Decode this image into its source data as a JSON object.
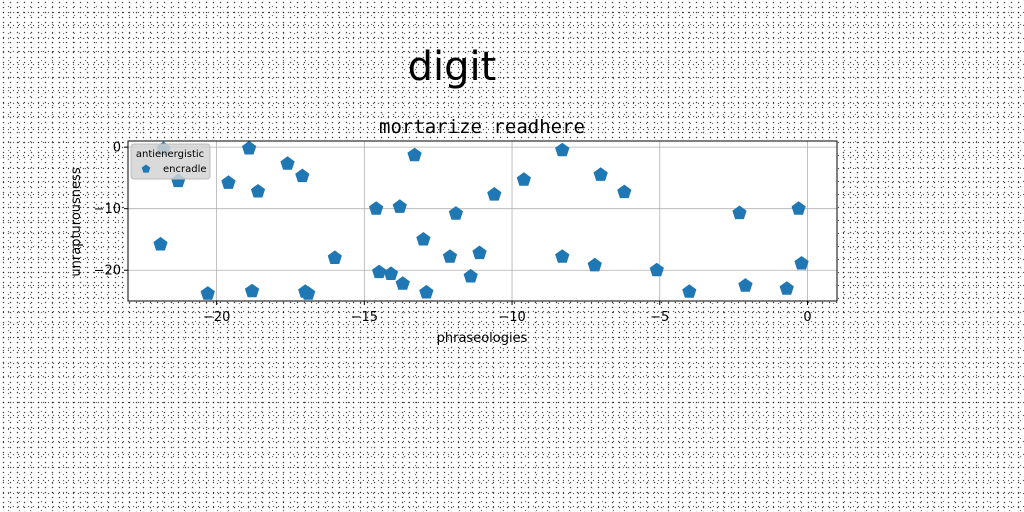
{
  "figure": {
    "suptitle": "digit"
  },
  "chart_data": {
    "type": "scatter",
    "title": "mortarize readhere",
    "xlabel": "phraseologies",
    "ylabel": "unrapturousness",
    "xlim": [
      -23,
      1
    ],
    "ylim": [
      -25,
      1
    ],
    "xticks": [
      -20,
      -15,
      -10,
      -5,
      0
    ],
    "xtick_labels": [
      "−20",
      "−15",
      "−10",
      "−5",
      "0"
    ],
    "yticks": [
      0,
      -10,
      -20
    ],
    "ytick_labels": [
      "0",
      "−10",
      "−20"
    ],
    "grid": true,
    "legend": {
      "title": "antienergistic",
      "position": "top-left"
    },
    "series": [
      {
        "name": "encradle",
        "marker": "pentagon",
        "color": "#1f77b4",
        "points": [
          [
            -21.8,
            -0.3
          ],
          [
            -21.3,
            -5.5
          ],
          [
            -21.9,
            -15.8
          ],
          [
            -20.3,
            -23.8
          ],
          [
            -19.6,
            -5.8
          ],
          [
            -18.8,
            -23.4
          ],
          [
            -18.9,
            -0.2
          ],
          [
            -18.6,
            -7.2
          ],
          [
            -17.6,
            -2.7
          ],
          [
            -17.1,
            -4.7
          ],
          [
            -17.0,
            -23.5
          ],
          [
            -16.9,
            -23.8
          ],
          [
            -16.0,
            -18.0
          ],
          [
            -14.6,
            -10.0
          ],
          [
            -14.5,
            -20.3
          ],
          [
            -14.1,
            -20.6
          ],
          [
            -13.8,
            -9.7
          ],
          [
            -13.7,
            -22.2
          ],
          [
            -13.3,
            -1.3
          ],
          [
            -13.0,
            -15.0
          ],
          [
            -12.9,
            -23.6
          ],
          [
            -12.1,
            -17.8
          ],
          [
            -11.9,
            -10.8
          ],
          [
            -11.4,
            -21.0
          ],
          [
            -11.1,
            -17.2
          ],
          [
            -10.6,
            -7.7
          ],
          [
            -9.6,
            -5.3
          ],
          [
            -8.3,
            -0.5
          ],
          [
            -8.3,
            -17.8
          ],
          [
            -7.2,
            -19.2
          ],
          [
            -7.0,
            -4.5
          ],
          [
            -6.2,
            -7.3
          ],
          [
            -5.1,
            -20.0
          ],
          [
            -4.0,
            -23.5
          ],
          [
            -2.3,
            -10.7
          ],
          [
            -2.1,
            -22.5
          ],
          [
            -0.7,
            -23.0
          ],
          [
            -0.3,
            -10.0
          ],
          [
            -0.2,
            -18.9
          ]
        ]
      }
    ]
  }
}
